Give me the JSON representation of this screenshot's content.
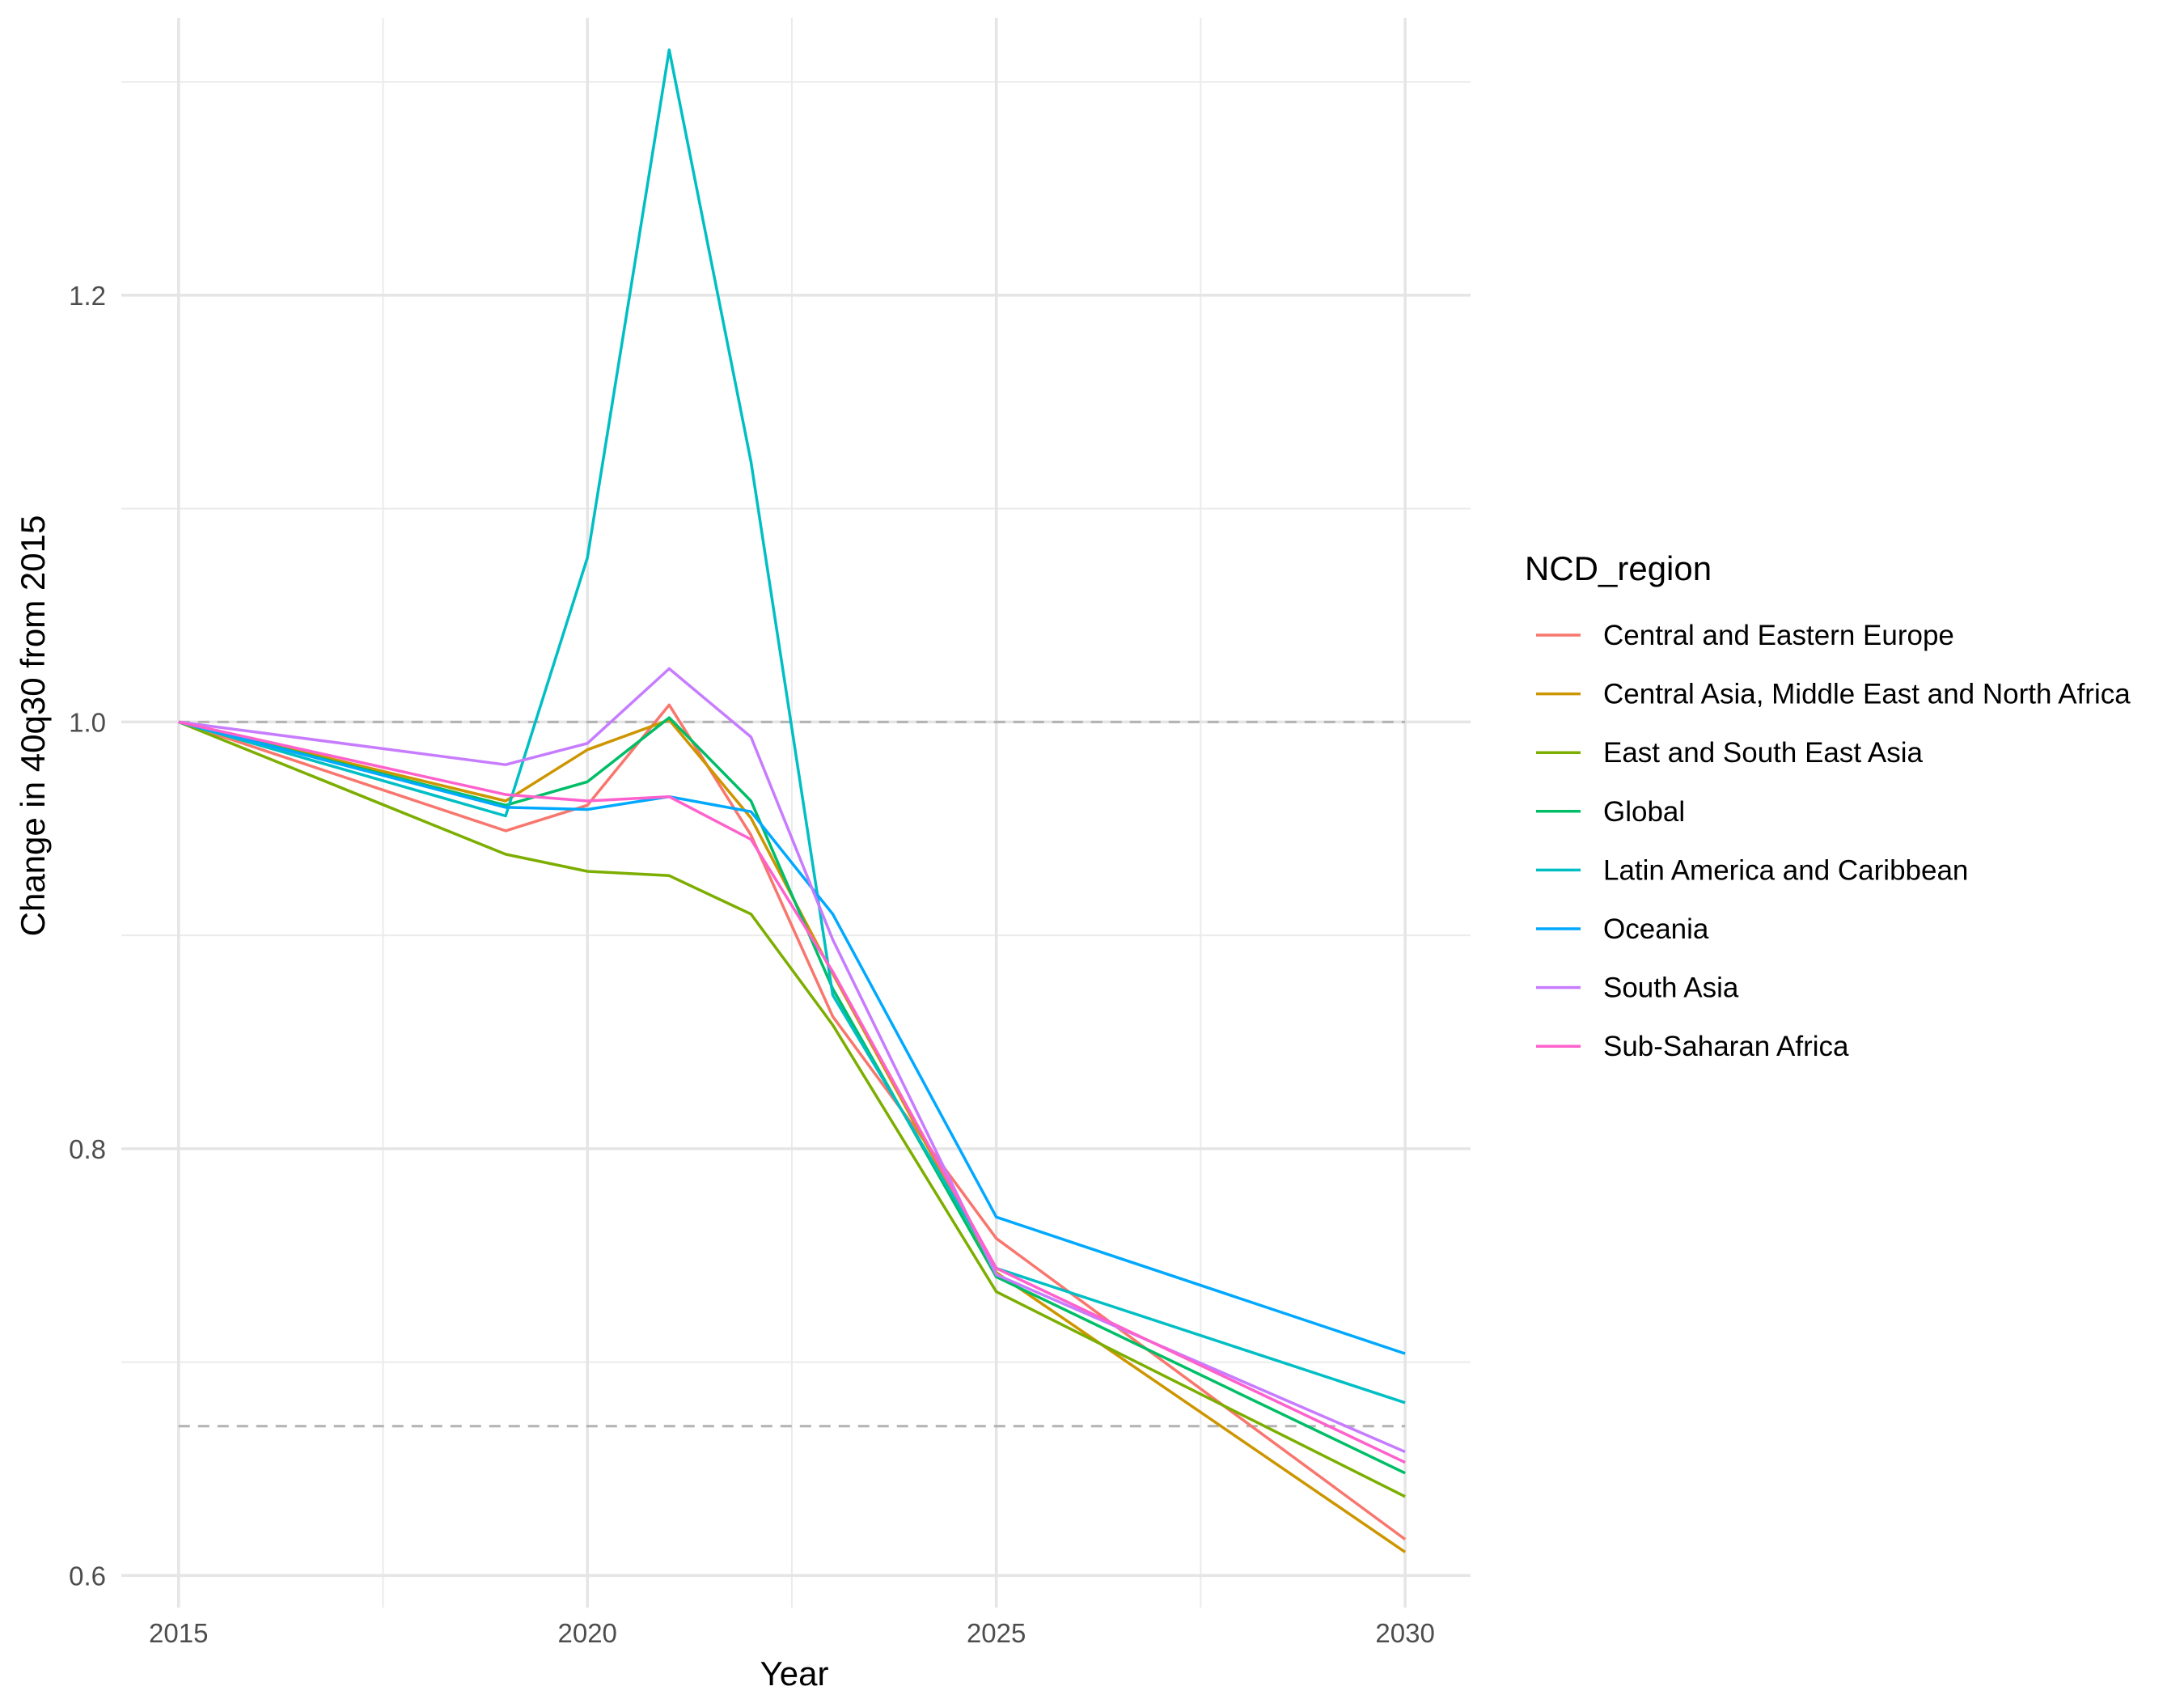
{
  "chart_data": {
    "type": "line",
    "xlabel": "Year",
    "ylabel": "Change in 40q30 from 2015",
    "xlim": [
      2014.3,
      2030.8
    ],
    "ylim": [
      0.585,
      1.33
    ],
    "x_ticks": [
      2015,
      2020,
      2025,
      2030
    ],
    "x_tick_labels": [
      "2015",
      "2020",
      "2025",
      "2030"
    ],
    "y_ticks": [
      0.6,
      0.8,
      1.0,
      1.2
    ],
    "y_tick_labels": [
      "0.6",
      "0.8",
      "1.0",
      "1.2"
    ],
    "reference_lines": [
      1.0,
      0.67
    ],
    "grid": true,
    "legend_title": "NCD_region",
    "legend_position": "right",
    "x": [
      2015,
      2019,
      2020,
      2021,
      2022,
      2023,
      2025,
      2030
    ],
    "series": [
      {
        "name": "Central and Eastern Europe",
        "color": "#F8766D",
        "values": [
          1.0,
          0.949,
          0.961,
          1.008,
          0.947,
          0.862,
          0.758,
          0.617
        ]
      },
      {
        "name": "Central Asia, Middle East and North Africa",
        "color": "#CD9600",
        "values": [
          1.0,
          0.963,
          0.987,
          1.001,
          0.955,
          0.882,
          0.742,
          0.611
        ]
      },
      {
        "name": "East and South East Asia",
        "color": "#7CAE00",
        "values": [
          1.0,
          0.938,
          0.93,
          0.928,
          0.91,
          0.858,
          0.733,
          0.637
        ]
      },
      {
        "name": "Global",
        "color": "#00BE67",
        "values": [
          1.0,
          0.961,
          0.972,
          1.002,
          0.963,
          0.875,
          0.74,
          0.648
        ]
      },
      {
        "name": "Latin America and Caribbean",
        "color": "#00BFC4",
        "values": [
          1.0,
          0.956,
          1.077,
          1.315,
          1.122,
          0.872,
          0.744,
          0.681
        ]
      },
      {
        "name": "Oceania",
        "color": "#00A9FF",
        "values": [
          1.0,
          0.96,
          0.959,
          0.965,
          0.958,
          0.91,
          0.768,
          0.704
        ]
      },
      {
        "name": "South Asia",
        "color": "#C77CFF",
        "values": [
          1.0,
          0.98,
          0.99,
          1.025,
          0.993,
          0.898,
          0.741,
          0.658
        ]
      },
      {
        "name": "Sub-Saharan Africa",
        "color": "#FF61CC",
        "values": [
          1.0,
          0.966,
          0.963,
          0.965,
          0.945,
          0.883,
          0.744,
          0.653
        ]
      }
    ]
  }
}
